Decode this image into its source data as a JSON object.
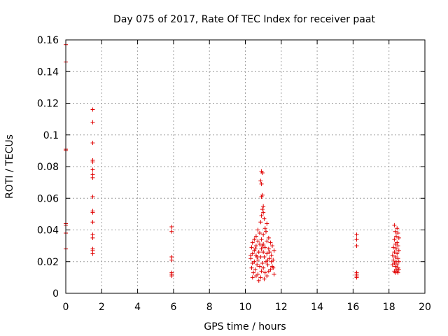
{
  "chart_data": {
    "type": "scatter",
    "title": "Day 075 of 2017, Rate Of TEC Index for receiver paat",
    "xlabel": "GPS time / hours",
    "ylabel": "ROTI / TECUs",
    "xlim": [
      0,
      20
    ],
    "ylim": [
      0,
      0.16
    ],
    "xticks": [
      0,
      2,
      4,
      6,
      8,
      10,
      12,
      14,
      16,
      18,
      20
    ],
    "xtick_labels": [
      "0",
      "2",
      "4",
      "6",
      "8",
      "10",
      "12",
      "14",
      "16",
      "18",
      "20"
    ],
    "yticks": [
      0,
      0.02,
      0.04,
      0.06,
      0.08,
      0.1,
      0.12,
      0.14,
      0.16
    ],
    "ytick_labels": [
      "0",
      "0.02",
      "0.04",
      "0.06",
      "0.08",
      "0.1",
      "0.12",
      "0.14",
      "0.16"
    ],
    "grid": true,
    "marker": "+",
    "color": "#e00000",
    "series": [
      {
        "name": "ROTI",
        "points": [
          [
            0.0,
            0.157
          ],
          [
            0.0,
            0.146
          ],
          [
            0.0,
            0.091
          ],
          [
            0.0,
            0.09
          ],
          [
            0.0,
            0.044
          ],
          [
            0.0,
            0.043
          ],
          [
            0.0,
            0.038
          ],
          [
            0.0,
            0.028
          ],
          [
            1.5,
            0.116
          ],
          [
            1.5,
            0.108
          ],
          [
            1.5,
            0.095
          ],
          [
            1.5,
            0.084
          ],
          [
            1.5,
            0.083
          ],
          [
            1.5,
            0.078
          ],
          [
            1.5,
            0.075
          ],
          [
            1.5,
            0.073
          ],
          [
            1.5,
            0.061
          ],
          [
            1.5,
            0.052
          ],
          [
            1.5,
            0.051
          ],
          [
            1.5,
            0.045
          ],
          [
            1.5,
            0.037
          ],
          [
            1.5,
            0.035
          ],
          [
            1.5,
            0.028
          ],
          [
            1.5,
            0.027
          ],
          [
            1.5,
            0.025
          ],
          [
            5.9,
            0.042
          ],
          [
            5.9,
            0.039
          ],
          [
            5.9,
            0.023
          ],
          [
            5.9,
            0.021
          ],
          [
            5.9,
            0.013
          ],
          [
            5.9,
            0.012
          ],
          [
            5.9,
            0.011
          ],
          [
            10.9,
            0.077
          ],
          [
            10.95,
            0.076
          ],
          [
            10.85,
            0.071
          ],
          [
            10.9,
            0.069
          ],
          [
            10.95,
            0.062
          ],
          [
            10.9,
            0.061
          ],
          [
            11.0,
            0.055
          ],
          [
            10.95,
            0.053
          ],
          [
            11.0,
            0.051
          ],
          [
            10.9,
            0.049
          ],
          [
            11.05,
            0.047
          ],
          [
            10.85,
            0.045
          ],
          [
            11.2,
            0.044
          ],
          [
            11.1,
            0.041
          ],
          [
            10.7,
            0.04
          ],
          [
            11.15,
            0.039
          ],
          [
            10.8,
            0.038
          ],
          [
            11.0,
            0.037
          ],
          [
            10.6,
            0.036
          ],
          [
            11.3,
            0.035
          ],
          [
            10.5,
            0.034
          ],
          [
            10.9,
            0.034
          ],
          [
            11.2,
            0.033
          ],
          [
            10.7,
            0.033
          ],
          [
            11.4,
            0.032
          ],
          [
            10.4,
            0.032
          ],
          [
            11.0,
            0.031
          ],
          [
            10.8,
            0.031
          ],
          [
            11.5,
            0.03
          ],
          [
            10.6,
            0.03
          ],
          [
            10.35,
            0.029
          ],
          [
            11.1,
            0.029
          ],
          [
            10.9,
            0.028
          ],
          [
            11.3,
            0.028
          ],
          [
            10.5,
            0.027
          ],
          [
            11.6,
            0.027
          ],
          [
            10.75,
            0.026
          ],
          [
            11.0,
            0.026
          ],
          [
            10.4,
            0.025
          ],
          [
            11.2,
            0.025
          ],
          [
            10.6,
            0.024
          ],
          [
            11.45,
            0.024
          ],
          [
            10.85,
            0.023
          ],
          [
            11.05,
            0.023
          ],
          [
            10.3,
            0.022
          ],
          [
            11.35,
            0.022
          ],
          [
            10.7,
            0.021
          ],
          [
            11.55,
            0.021
          ],
          [
            10.5,
            0.02
          ],
          [
            11.15,
            0.02
          ],
          [
            10.95,
            0.019
          ],
          [
            10.4,
            0.019
          ],
          [
            11.25,
            0.018
          ],
          [
            10.65,
            0.018
          ],
          [
            11.5,
            0.017
          ],
          [
            10.8,
            0.017
          ],
          [
            10.35,
            0.016
          ],
          [
            11.0,
            0.016
          ],
          [
            11.4,
            0.015
          ],
          [
            10.55,
            0.015
          ],
          [
            10.9,
            0.014
          ],
          [
            11.3,
            0.014
          ],
          [
            10.45,
            0.013
          ],
          [
            11.1,
            0.013
          ],
          [
            10.7,
            0.012
          ],
          [
            11.6,
            0.012
          ],
          [
            10.6,
            0.011
          ],
          [
            11.2,
            0.011
          ],
          [
            10.85,
            0.01
          ],
          [
            10.4,
            0.01
          ],
          [
            11.05,
            0.009
          ],
          [
            10.75,
            0.008
          ],
          [
            11.45,
            0.02
          ],
          [
            10.3,
            0.024
          ],
          [
            11.55,
            0.016
          ],
          [
            10.95,
            0.03
          ],
          [
            10.55,
            0.028
          ],
          [
            11.35,
            0.026
          ],
          [
            10.65,
            0.023
          ],
          [
            11.25,
            0.021
          ],
          [
            16.2,
            0.037
          ],
          [
            16.2,
            0.034
          ],
          [
            16.2,
            0.03
          ],
          [
            16.2,
            0.013
          ],
          [
            16.2,
            0.012
          ],
          [
            16.2,
            0.011
          ],
          [
            16.2,
            0.01
          ],
          [
            18.3,
            0.043
          ],
          [
            18.45,
            0.041
          ],
          [
            18.35,
            0.039
          ],
          [
            18.5,
            0.038
          ],
          [
            18.4,
            0.036
          ],
          [
            18.55,
            0.035
          ],
          [
            18.3,
            0.034
          ],
          [
            18.45,
            0.032
          ],
          [
            18.35,
            0.031
          ],
          [
            18.5,
            0.03
          ],
          [
            18.25,
            0.029
          ],
          [
            18.4,
            0.028
          ],
          [
            18.55,
            0.027
          ],
          [
            18.3,
            0.026
          ],
          [
            18.45,
            0.025
          ],
          [
            18.2,
            0.024
          ],
          [
            18.35,
            0.023
          ],
          [
            18.5,
            0.022
          ],
          [
            18.25,
            0.021
          ],
          [
            18.4,
            0.02
          ],
          [
            18.55,
            0.02
          ],
          [
            18.3,
            0.019
          ],
          [
            18.45,
            0.018
          ],
          [
            18.2,
            0.018
          ],
          [
            18.35,
            0.017
          ],
          [
            18.5,
            0.016
          ],
          [
            18.4,
            0.015
          ],
          [
            18.55,
            0.015
          ],
          [
            18.3,
            0.014
          ],
          [
            18.45,
            0.014
          ],
          [
            18.35,
            0.013
          ],
          [
            18.5,
            0.013
          ]
        ]
      }
    ]
  }
}
